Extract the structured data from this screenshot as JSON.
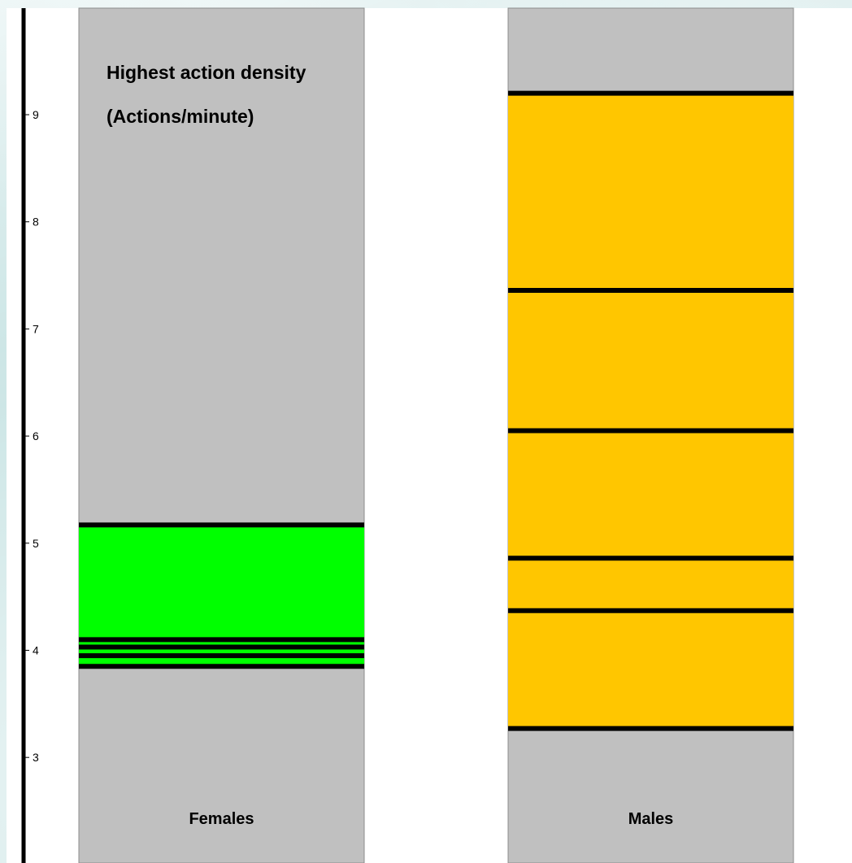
{
  "chart_data": {
    "type": "bar",
    "title": "Highest action density",
    "subtitle": "(Actions/minute)",
    "xlabel": "",
    "ylabel": "",
    "y_ticks": [
      "3",
      "4",
      "5",
      "6",
      "7",
      "8",
      "9"
    ],
    "ylim": [
      2,
      10
    ],
    "grid": false,
    "categories": [
      "Females",
      "Males"
    ],
    "series": [
      {
        "category": "Females",
        "range": [
          3.85,
          5.17
        ],
        "color": "#00ff00",
        "marks": [
          3.85,
          3.95,
          4.03,
          4.1,
          5.17
        ]
      },
      {
        "category": "Males",
        "range": [
          3.27,
          9.2
        ],
        "color": "#ffc600",
        "marks": [
          3.27,
          4.37,
          4.86,
          6.05,
          7.36,
          9.2
        ]
      }
    ],
    "colors": {
      "column_background": "#c0c0c0",
      "mark_line": "#000000"
    }
  }
}
